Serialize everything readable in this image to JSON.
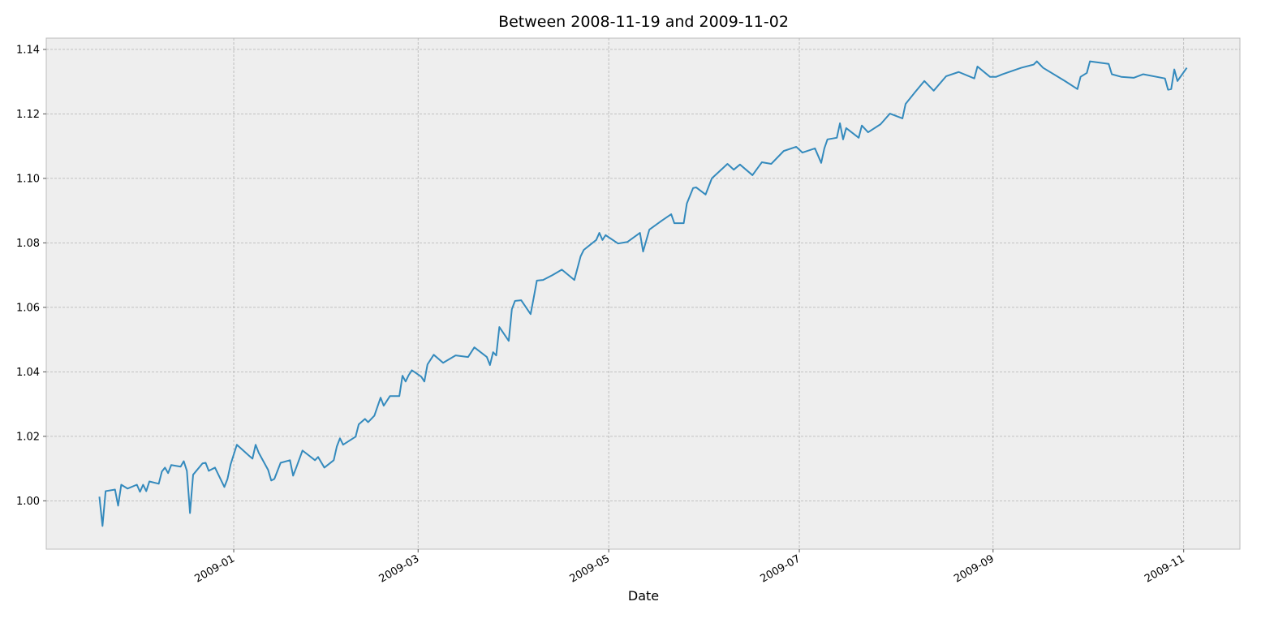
{
  "chart_data": {
    "type": "line",
    "title": "Between 2008-11-19 and 2009-11-02",
    "xlabel": "Date",
    "color": "#348abd",
    "grid": true,
    "x": [
      "2008-11-19",
      "2008-11-20",
      "2008-11-21",
      "2008-11-24",
      "2008-11-25",
      "2008-11-26",
      "2008-11-28",
      "2008-12-01",
      "2008-12-02",
      "2008-12-03",
      "2008-12-04",
      "2008-12-05",
      "2008-12-08",
      "2008-12-09",
      "2008-12-10",
      "2008-12-11",
      "2008-12-12",
      "2008-12-15",
      "2008-12-16",
      "2008-12-17",
      "2008-12-18",
      "2008-12-19",
      "2008-12-22",
      "2008-12-23",
      "2008-12-24",
      "2008-12-26",
      "2008-12-29",
      "2008-12-30",
      "2008-12-31",
      "2009-01-02",
      "2009-01-06",
      "2009-01-07",
      "2009-01-08",
      "2009-01-09",
      "2009-01-12",
      "2009-01-13",
      "2009-01-14",
      "2009-01-16",
      "2009-01-19",
      "2009-01-20",
      "2009-01-21",
      "2009-01-23",
      "2009-01-27",
      "2009-01-28",
      "2009-01-30",
      "2009-02-02",
      "2009-02-03",
      "2009-02-04",
      "2009-02-05",
      "2009-02-09",
      "2009-02-10",
      "2009-02-12",
      "2009-02-13",
      "2009-02-15",
      "2009-02-17",
      "2009-02-18",
      "2009-02-20",
      "2009-02-23",
      "2009-02-24",
      "2009-02-25",
      "2009-02-26",
      "2009-02-27",
      "2009-03-02",
      "2009-03-03",
      "2009-03-04",
      "2009-03-06",
      "2009-03-09",
      "2009-03-13",
      "2009-03-17",
      "2009-03-19",
      "2009-03-23",
      "2009-03-24",
      "2009-03-25",
      "2009-03-26",
      "2009-03-27",
      "2009-03-30",
      "2009-03-31",
      "2009-04-01",
      "2009-04-03",
      "2009-04-06",
      "2009-04-07",
      "2009-04-08",
      "2009-04-10",
      "2009-04-13",
      "2009-04-16",
      "2009-04-20",
      "2009-04-22",
      "2009-04-23",
      "2009-04-27",
      "2009-04-28",
      "2009-04-29",
      "2009-04-30",
      "2009-05-04",
      "2009-05-07",
      "2009-05-11",
      "2009-05-12",
      "2009-05-14",
      "2009-05-18",
      "2009-05-21",
      "2009-05-22",
      "2009-05-25",
      "2009-05-26",
      "2009-05-28",
      "2009-05-29",
      "2009-06-01",
      "2009-06-03",
      "2009-06-08",
      "2009-06-10",
      "2009-06-12",
      "2009-06-16",
      "2009-06-19",
      "2009-06-22",
      "2009-06-26",
      "2009-06-30",
      "2009-07-02",
      "2009-07-06",
      "2009-07-08",
      "2009-07-09",
      "2009-07-10",
      "2009-07-13",
      "2009-07-14",
      "2009-07-15",
      "2009-07-16",
      "2009-07-20",
      "2009-07-21",
      "2009-07-23",
      "2009-07-27",
      "2009-07-30",
      "2009-08-03",
      "2009-08-04",
      "2009-08-07",
      "2009-08-10",
      "2009-08-13",
      "2009-08-17",
      "2009-08-21",
      "2009-08-26",
      "2009-08-27",
      "2009-08-31",
      "2009-09-02",
      "2009-09-04",
      "2009-09-10",
      "2009-09-14",
      "2009-09-15",
      "2009-09-17",
      "2009-09-24",
      "2009-09-28",
      "2009-09-29",
      "2009-10-01",
      "2009-10-02",
      "2009-10-08",
      "2009-10-09",
      "2009-10-12",
      "2009-10-16",
      "2009-10-19",
      "2009-10-26",
      "2009-10-27",
      "2009-10-28",
      "2009-10-29",
      "2009-10-30",
      "2009-11-02"
    ],
    "values": [
      1.0013,
      0.9922,
      1.003,
      1.0035,
      0.9985,
      1.005,
      1.0038,
      1.005,
      1.0028,
      1.005,
      1.003,
      1.006,
      1.0053,
      1.0091,
      1.0103,
      1.0086,
      1.0111,
      1.0106,
      1.0123,
      1.0093,
      0.9962,
      1.0081,
      1.0116,
      1.0118,
      1.0093,
      1.0103,
      1.0043,
      1.0068,
      1.0113,
      1.0174,
      1.0139,
      1.0131,
      1.0174,
      1.0149,
      1.0096,
      1.0063,
      1.0068,
      1.0118,
      1.0126,
      1.0078,
      1.0103,
      1.0156,
      1.0126,
      1.0136,
      1.0103,
      1.0126,
      1.0169,
      1.0194,
      1.0174,
      1.0199,
      1.0237,
      1.0254,
      1.0244,
      1.0264,
      1.032,
      1.0295,
      1.0325,
      1.0325,
      1.0388,
      1.037,
      1.039,
      1.0405,
      1.0385,
      1.037,
      1.0423,
      1.0453,
      1.0428,
      1.0451,
      1.0446,
      1.0476,
      1.0446,
      1.0421,
      1.0461,
      1.0451,
      1.0539,
      1.0496,
      1.0594,
      1.062,
      1.0622,
      1.0579,
      1.063,
      1.0683,
      1.0685,
      1.07,
      1.0717,
      1.0685,
      1.0758,
      1.0778,
      1.0809,
      1.0831,
      1.0809,
      1.0824,
      1.0798,
      1.0803,
      1.0831,
      1.0773,
      1.0841,
      1.0869,
      1.0889,
      1.0861,
      1.0861,
      1.0922,
      1.097,
      1.0972,
      1.095,
      1.1,
      1.1045,
      1.1027,
      1.1043,
      1.101,
      1.105,
      1.1045,
      1.1085,
      1.1098,
      1.108,
      1.1093,
      1.1048,
      1.1093,
      1.1121,
      1.1126,
      1.1171,
      1.1121,
      1.1156,
      1.1126,
      1.1164,
      1.1143,
      1.1168,
      1.1201,
      1.1186,
      1.1231,
      1.1267,
      1.1302,
      1.1272,
      1.1317,
      1.133,
      1.131,
      1.1347,
      1.1315,
      1.1315,
      1.1323,
      1.1343,
      1.1353,
      1.1363,
      1.1343,
      1.1302,
      1.1277,
      1.1315,
      1.1327,
      1.1363,
      1.1355,
      1.1323,
      1.1315,
      1.1312,
      1.1323,
      1.131,
      1.1275,
      1.1277,
      1.1338,
      1.1302,
      1.1343
    ],
    "xlim": [
      "2008-11-02",
      "2009-11-19"
    ],
    "xticks": [
      {
        "value": "2009-01-01",
        "label": "2009-01"
      },
      {
        "value": "2009-03-01",
        "label": "2009-03"
      },
      {
        "value": "2009-05-01",
        "label": "2009-05"
      },
      {
        "value": "2009-07-01",
        "label": "2009-07"
      },
      {
        "value": "2009-09-01",
        "label": "2009-09"
      },
      {
        "value": "2009-11-01",
        "label": "2009-11"
      }
    ],
    "ylim": [
      0.985,
      1.1435
    ],
    "yticks": [
      {
        "value": 1,
        "label": "1.00"
      },
      1.02,
      1.04,
      1.06,
      1.08,
      {
        "value": 1.1,
        "label": "1.10"
      },
      1.12,
      1.14
    ]
  }
}
